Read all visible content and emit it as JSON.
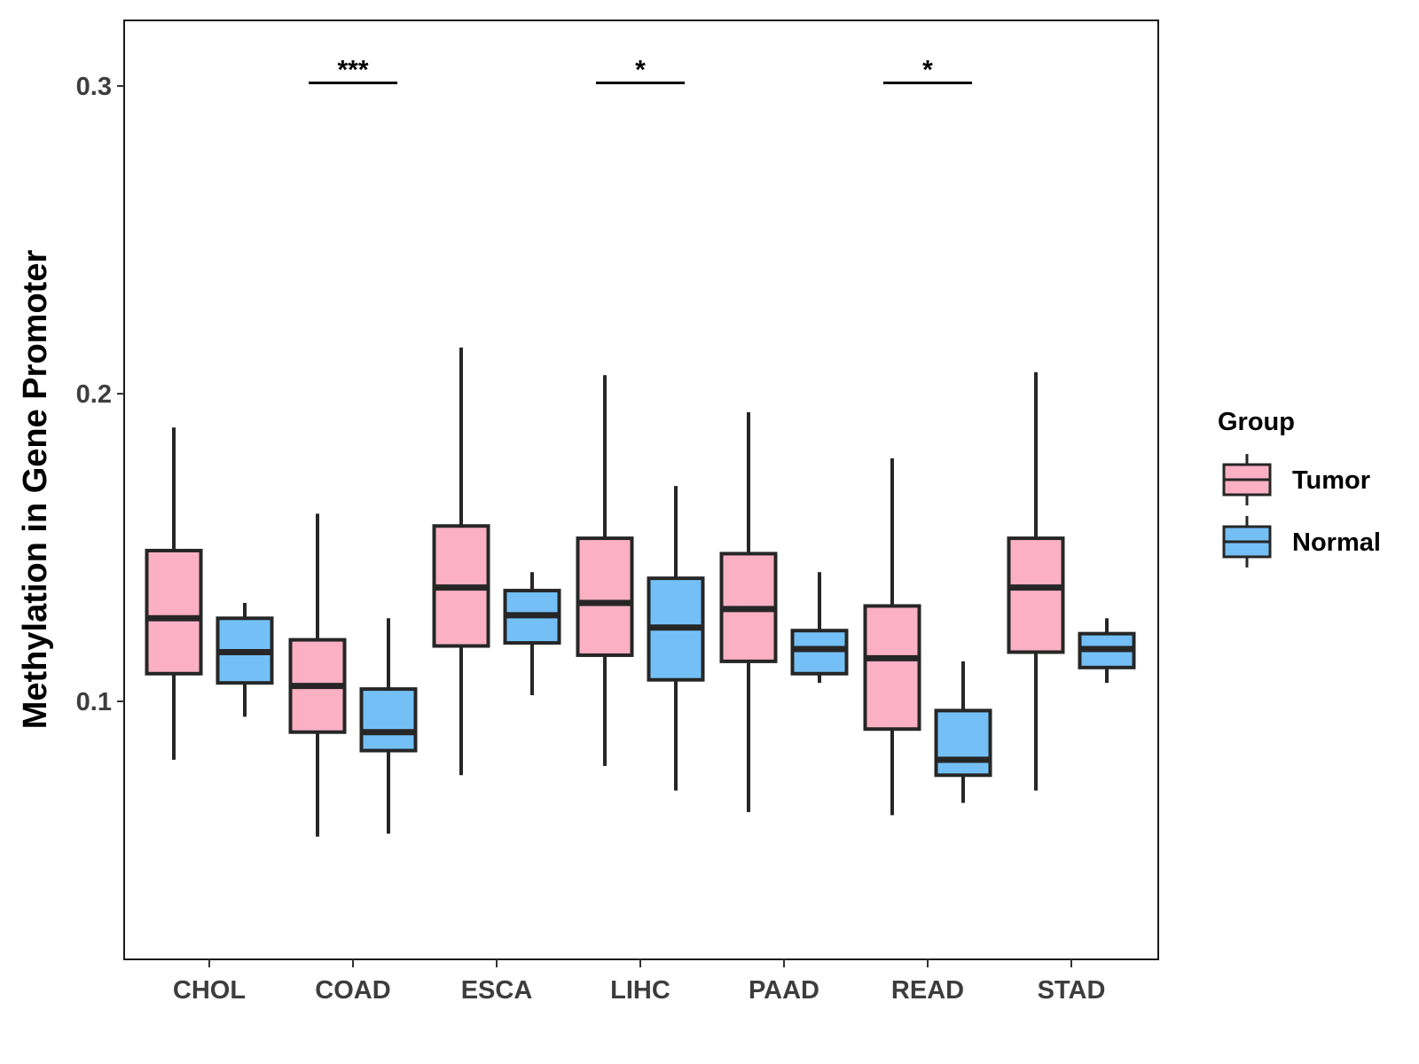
{
  "chart_data": {
    "type": "boxplot",
    "title": "",
    "xlabel": "",
    "ylabel": "Methylation in Gene Promoter",
    "ylim": [
      0.015,
      0.321
    ],
    "yticks": [
      0.1,
      0.2,
      0.3
    ],
    "ytick_labels": [
      "0.1",
      "0.2",
      "0.3"
    ],
    "categories": [
      "CHOL",
      "COAD",
      "ESCA",
      "LIHC",
      "PAAD",
      "READ",
      "STAD"
    ],
    "legend": {
      "title": "Group",
      "position": "right",
      "entries": [
        {
          "name": "Tumor",
          "color": "#fbb1c3"
        },
        {
          "name": "Normal",
          "color": "#74c0f6"
        }
      ]
    },
    "series": [
      {
        "name": "Tumor",
        "color": "#fbb1c3",
        "boxes": [
          {
            "min": 0.081,
            "q1": 0.109,
            "median": 0.127,
            "q3": 0.149,
            "max": 0.189
          },
          {
            "min": 0.056,
            "q1": 0.09,
            "median": 0.105,
            "q3": 0.12,
            "max": 0.161
          },
          {
            "min": 0.076,
            "q1": 0.118,
            "median": 0.137,
            "q3": 0.157,
            "max": 0.215
          },
          {
            "min": 0.079,
            "q1": 0.115,
            "median": 0.132,
            "q3": 0.153,
            "max": 0.206
          },
          {
            "min": 0.064,
            "q1": 0.113,
            "median": 0.13,
            "q3": 0.148,
            "max": 0.194
          },
          {
            "min": 0.063,
            "q1": 0.091,
            "median": 0.114,
            "q3": 0.131,
            "max": 0.179
          },
          {
            "min": 0.071,
            "q1": 0.116,
            "median": 0.137,
            "q3": 0.153,
            "max": 0.207
          }
        ]
      },
      {
        "name": "Normal",
        "color": "#74c0f6",
        "boxes": [
          {
            "min": 0.095,
            "q1": 0.106,
            "median": 0.116,
            "q3": 0.127,
            "max": 0.132
          },
          {
            "min": 0.057,
            "q1": 0.084,
            "median": 0.09,
            "q3": 0.104,
            "max": 0.127
          },
          {
            "min": 0.102,
            "q1": 0.119,
            "median": 0.128,
            "q3": 0.136,
            "max": 0.142
          },
          {
            "min": 0.071,
            "q1": 0.107,
            "median": 0.124,
            "q3": 0.14,
            "max": 0.17
          },
          {
            "min": 0.106,
            "q1": 0.109,
            "median": 0.117,
            "q3": 0.123,
            "max": 0.142
          },
          {
            "min": 0.067,
            "q1": 0.076,
            "median": 0.081,
            "q3": 0.097,
            "max": 0.113
          },
          {
            "min": 0.106,
            "q1": 0.111,
            "median": 0.117,
            "q3": 0.122,
            "max": 0.127
          }
        ]
      }
    ],
    "annotations": [
      {
        "category": "COAD",
        "label": "***",
        "y": 0.301
      },
      {
        "category": "LIHC",
        "label": "*",
        "y": 0.301
      },
      {
        "category": "READ",
        "label": "*",
        "y": 0.301
      }
    ]
  }
}
